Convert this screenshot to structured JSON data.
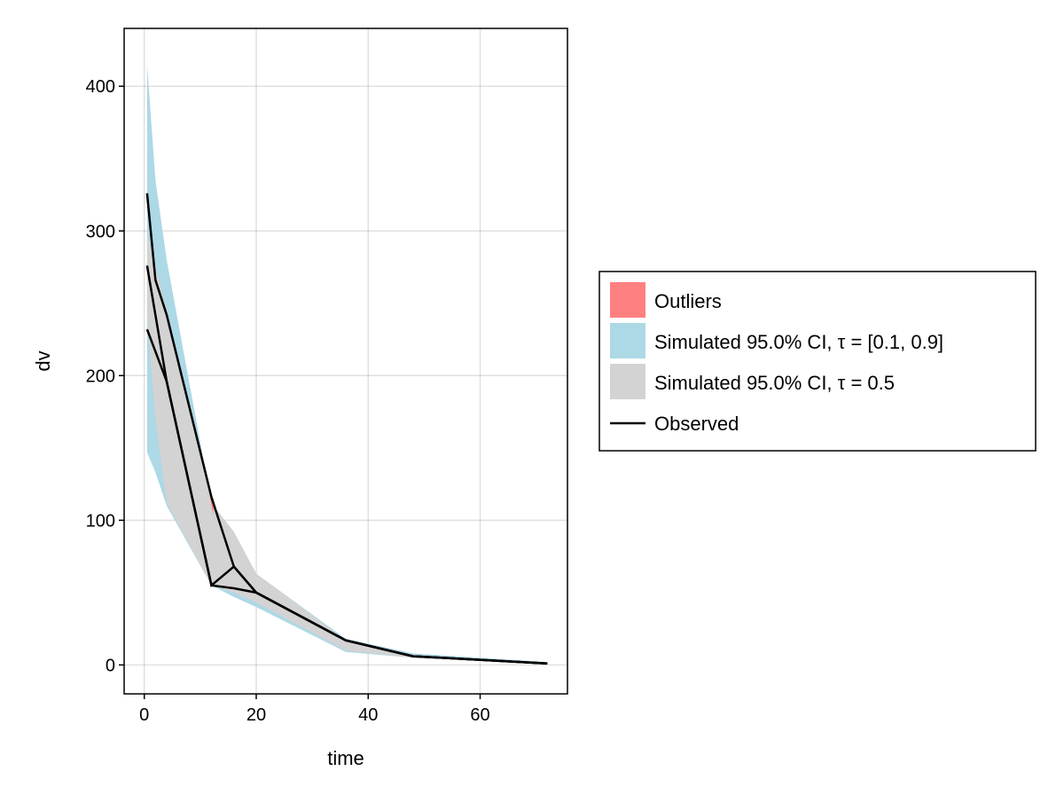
{
  "chart_data": {
    "type": "area",
    "title": "",
    "xlabel": "time",
    "ylabel": "dv",
    "xlim": [
      -3.6,
      75.6
    ],
    "ylim": [
      -20,
      440
    ],
    "xticks": [
      0,
      20,
      40,
      60
    ],
    "yticks": [
      0,
      100,
      200,
      300,
      400
    ],
    "grid": true,
    "legend_placement": "right",
    "colors": {
      "outliers": "#ff8080",
      "ci_outer": "#add8e6",
      "ci_median": "#d3d3d3",
      "observed": "#000000"
    },
    "legend": [
      {
        "label": "Outliers",
        "kind": "patch",
        "color": "#ff8080"
      },
      {
        "label": "Simulated 95.0% CI, τ = [0.1, 0.9]",
        "kind": "patch",
        "color": "#add8e6"
      },
      {
        "label": "Simulated 95.0% CI, τ = 0.5",
        "kind": "patch",
        "color": "#d3d3d3"
      },
      {
        "label": "Observed",
        "kind": "line",
        "color": "#000000"
      }
    ],
    "time": [
      0.5,
      2,
      4,
      12,
      16,
      20,
      36,
      48,
      72
    ],
    "ci_outer_upper": [
      415,
      335,
      280,
      112,
      92,
      63,
      18,
      8,
      2
    ],
    "ci_outer_lower": [
      147,
      133,
      110,
      55,
      47,
      40,
      9,
      5,
      1
    ],
    "ci_median_upper": [
      300,
      275,
      245,
      112,
      92,
      63,
      17,
      7,
      1.5
    ],
    "ci_median_lower": [
      240,
      170,
      112,
      55,
      50,
      43,
      10,
      5,
      1
    ],
    "outliers": [
      {
        "time": 11.5,
        "value": 121
      },
      {
        "time": 12.3,
        "value": 104
      },
      {
        "time": 12.4,
        "value": 114
      }
    ],
    "observed": [
      {
        "time": [
          0.5,
          2,
          4,
          12,
          16,
          20,
          36,
          48,
          72
        ],
        "values": [
          326,
          266,
          242,
          116,
          68,
          50,
          17,
          6,
          1
        ]
      },
      {
        "time": [
          0.5,
          4,
          12,
          16,
          20,
          36,
          48,
          72
        ],
        "values": [
          276,
          196,
          55,
          68,
          50,
          17,
          6,
          1
        ]
      },
      {
        "time": [
          0.5,
          4,
          12,
          16,
          20,
          36,
          48,
          72
        ],
        "values": [
          232,
          196,
          55,
          53,
          50,
          17,
          6,
          1
        ]
      }
    ]
  }
}
